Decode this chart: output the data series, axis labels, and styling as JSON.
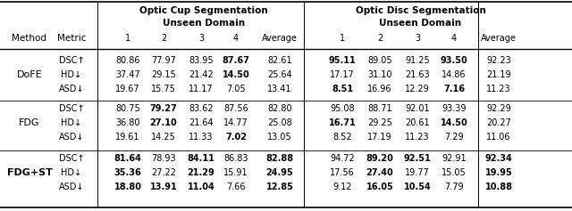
{
  "rows": [
    {
      "method": "DoFE",
      "metrics": [
        "DSC↑",
        "HD↓",
        "ASD↓"
      ],
      "cup_vals": [
        [
          "80.86",
          "77.97",
          "83.95",
          "87.67",
          "82.61"
        ],
        [
          "37.47",
          "29.15",
          "21.42",
          "14.50",
          "25.64"
        ],
        [
          "19.67",
          "15.75",
          "11.17",
          "7.05",
          "13.41"
        ]
      ],
      "disc_vals": [
        [
          "95.11",
          "89.05",
          "91.25",
          "93.50",
          "92.23"
        ],
        [
          "17.17",
          "31.10",
          "21.63",
          "14.86",
          "21.19"
        ],
        [
          "8.51",
          "16.96",
          "12.29",
          "7.16",
          "11.23"
        ]
      ],
      "cup_bold": [
        [
          false,
          false,
          false,
          true,
          false
        ],
        [
          false,
          false,
          false,
          true,
          false
        ],
        [
          false,
          false,
          false,
          false,
          false
        ]
      ],
      "disc_bold": [
        [
          true,
          false,
          false,
          true,
          false
        ],
        [
          false,
          false,
          false,
          false,
          false
        ],
        [
          true,
          false,
          false,
          true,
          false
        ]
      ],
      "method_bold": false
    },
    {
      "method": "FDG",
      "metrics": [
        "DSC↑",
        "HD↓",
        "ASD↓"
      ],
      "cup_vals": [
        [
          "80.75",
          "79.27",
          "83.62",
          "87.56",
          "82.80"
        ],
        [
          "36.80",
          "27.10",
          "21.64",
          "14.77",
          "25.08"
        ],
        [
          "19.61",
          "14.25",
          "11.33",
          "7.02",
          "13.05"
        ]
      ],
      "disc_vals": [
        [
          "95.08",
          "88.71",
          "92.01",
          "93.39",
          "92.29"
        ],
        [
          "16.71",
          "29.25",
          "20.61",
          "14.50",
          "20.27"
        ],
        [
          "8.52",
          "17.19",
          "11.23",
          "7.29",
          "11.06"
        ]
      ],
      "cup_bold": [
        [
          false,
          true,
          false,
          false,
          false
        ],
        [
          false,
          true,
          false,
          false,
          false
        ],
        [
          false,
          false,
          false,
          true,
          false
        ]
      ],
      "disc_bold": [
        [
          false,
          false,
          false,
          false,
          false
        ],
        [
          true,
          false,
          false,
          true,
          false
        ],
        [
          false,
          false,
          false,
          false,
          false
        ]
      ],
      "method_bold": false
    },
    {
      "method": "FDG+ST",
      "metrics": [
        "DSC↑",
        "HD↓",
        "ASD↓"
      ],
      "cup_vals": [
        [
          "81.64",
          "78.93",
          "84.11",
          "86.83",
          "82.88"
        ],
        [
          "35.36",
          "27.22",
          "21.29",
          "15.91",
          "24.95"
        ],
        [
          "18.80",
          "13.91",
          "11.04",
          "7.66",
          "12.85"
        ]
      ],
      "disc_vals": [
        [
          "94.72",
          "89.20",
          "92.51",
          "92.91",
          "92.34"
        ],
        [
          "17.56",
          "27.40",
          "19.77",
          "15.05",
          "19.95"
        ],
        [
          "9.12",
          "16.05",
          "10.54",
          "7.79",
          "10.88"
        ]
      ],
      "cup_bold": [
        [
          true,
          false,
          true,
          false,
          true
        ],
        [
          true,
          false,
          true,
          false,
          true
        ],
        [
          true,
          true,
          true,
          false,
          true
        ]
      ],
      "disc_bold": [
        [
          false,
          true,
          true,
          false,
          true
        ],
        [
          false,
          true,
          false,
          false,
          true
        ],
        [
          false,
          true,
          true,
          false,
          true
        ]
      ],
      "method_bold": true
    }
  ],
  "bg_color": "#ffffff",
  "header_fontsize": 7.5,
  "cell_fontsize": 7.0,
  "method_fontsize": 8.0
}
